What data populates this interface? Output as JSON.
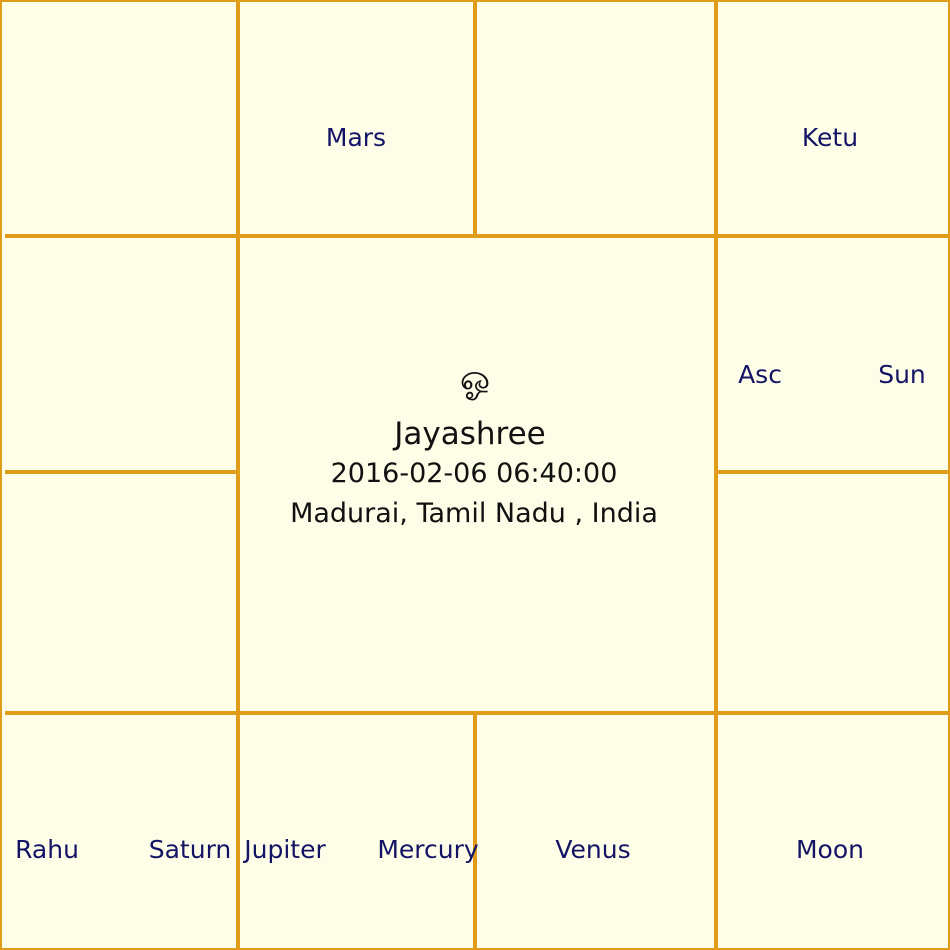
{
  "chart": {
    "colors": {
      "background": "#fefee8",
      "grid_line": "#e09c18",
      "planet_text": "#141466",
      "center_text": "#111111"
    },
    "houses": {
      "top_left": [],
      "top_mid_left": [
        "Mars"
      ],
      "top_mid_right": [],
      "top_right": [
        "Ketu"
      ],
      "right_upper": [
        "Asc",
        "Sun"
      ],
      "right_lower": [],
      "bottom_right": [
        "Moon"
      ],
      "bottom_mid_right": [
        "Venus"
      ],
      "bottom_mid_left": [
        "Jupiter",
        "Mercury"
      ],
      "bottom_left": [
        "Rahu",
        "Saturn"
      ],
      "left_lower": [],
      "left_upper": []
    },
    "center": {
      "symbol": "ஓ",
      "name": "Jayashree",
      "datetime": "2016-02-06 06:40:00",
      "place": "Madurai, Tamil Nadu , India"
    }
  }
}
